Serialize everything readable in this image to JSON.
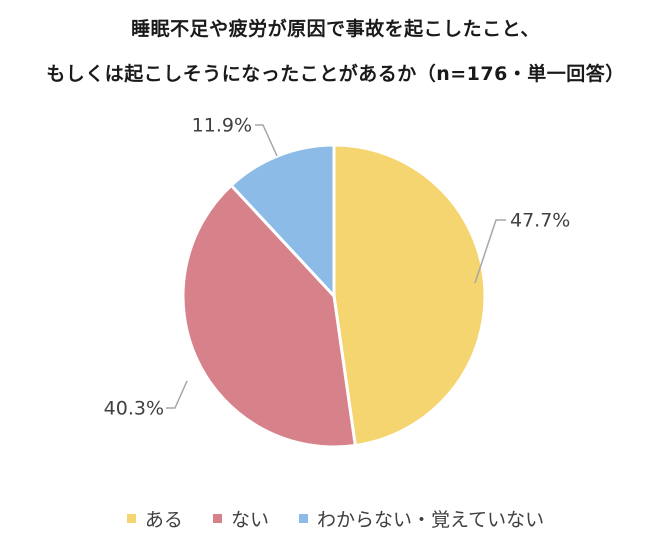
{
  "chart_data": {
    "type": "pie",
    "title_line1": "睡眠不足や疲労が原因で事故を起こしたこと、",
    "title_line2": "もしくは起こしそうになったことがあるか（n=176・単一回答）",
    "start_angle_deg": 0,
    "direction": "clockwise",
    "legend_position": "bottom",
    "slices": [
      {
        "name": "ある",
        "value": 47.7,
        "label": "47.7%",
        "color": "#f5d570"
      },
      {
        "name": "ない",
        "value": 40.3,
        "label": "40.3%",
        "color": "#d7818a"
      },
      {
        "name": "わからない・覚えていない",
        "value": 11.9,
        "label": "11.9%",
        "color": "#8bbbe6"
      }
    ]
  }
}
